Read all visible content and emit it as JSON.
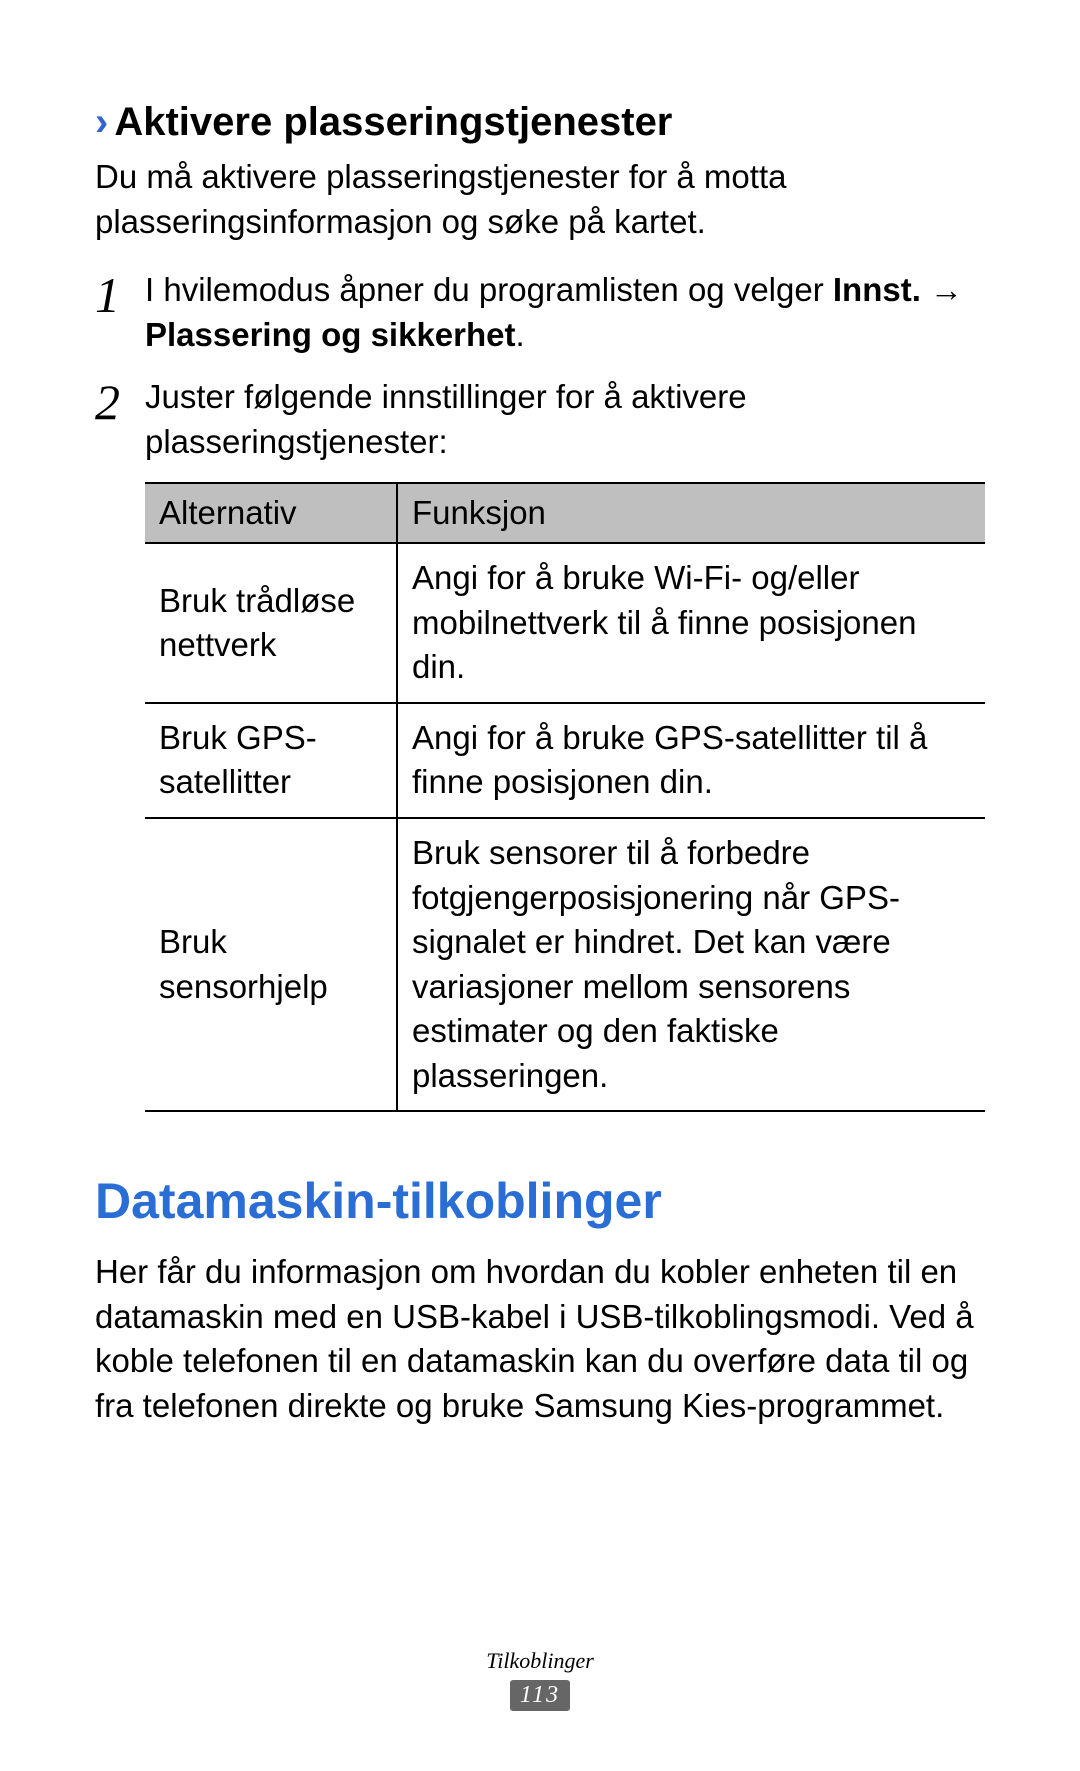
{
  "section1": {
    "heading": "Aktivere plasseringstjenester",
    "intro": "Du må aktivere plasseringstjenester for å motta plasseringsinformasjon og søke på kartet.",
    "step1_prefix": "I hvilemodus åpner du programlisten og velger ",
    "step1_bold1": "Innst.",
    "step1_arrow": " → ",
    "step1_bold2": "Plassering og sikkerhet",
    "step1_period": ".",
    "step2": "Juster følgende innstillinger for å aktivere plasseringstjenester:"
  },
  "table": {
    "header_col1": "Alternativ",
    "header_col2": "Funksjon",
    "rows": [
      {
        "alt": "Bruk trådløse nettverk",
        "func": "Angi for å bruke Wi-Fi- og/eller mobilnettverk til å finne posisjonen din."
      },
      {
        "alt": "Bruk GPS-satellitter",
        "func": "Angi for å bruke GPS-satellitter til å finne posisjonen din."
      },
      {
        "alt": "Bruk sensorhjelp",
        "func": "Bruk sensorer til å forbedre fotgjengerposisjonering når GPS-signalet er hindret. Det kan være variasjoner mellom sensorens estimater og den faktiske plasseringen."
      }
    ]
  },
  "section2": {
    "heading": "Datamaskin-tilkoblinger",
    "body": "Her får du informasjon om hvordan du kobler enheten til en datamaskin med en USB-kabel i USB-tilkoblingsmodi. Ved å koble telefonen til en datamaskin kan du overføre data til og fra telefonen direkte og bruke Samsung Kies-programmet."
  },
  "footer": {
    "label": "Tilkoblinger",
    "page": "113"
  },
  "colors": {
    "heading_blue": "#2a6dd4",
    "chevron_blue": "#3366cc",
    "table_header_bg": "#bfbfbf",
    "badge_bg": "#666666"
  }
}
